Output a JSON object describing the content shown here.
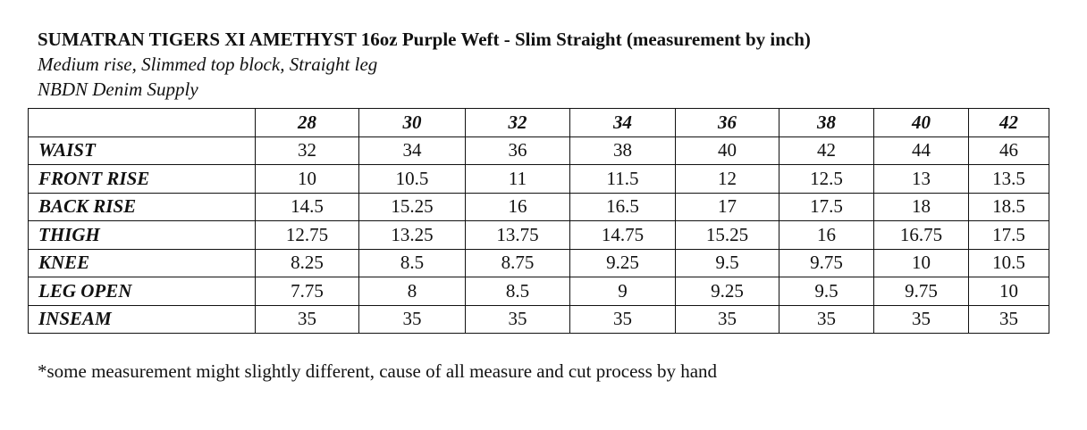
{
  "header": {
    "title": "SUMATRAN TIGERS XI AMETHYST 16oz Purple Weft -  Slim Straight (measurement by inch)",
    "subtitle": "Medium rise, Slimmed top block, Straight leg",
    "supplier": "NBDN Denim Supply"
  },
  "table": {
    "sizes": [
      "28",
      "30",
      "32",
      "34",
      "36",
      "38",
      "40",
      "42"
    ],
    "rows": [
      {
        "label": "WAIST",
        "values": [
          "32",
          "34",
          "36",
          "38",
          "40",
          "42",
          "44",
          "46"
        ]
      },
      {
        "label": "FRONT RISE",
        "values": [
          "10",
          "10.5",
          "11",
          "11.5",
          "12",
          "12.5",
          "13",
          "13.5"
        ]
      },
      {
        "label": "BACK RISE",
        "values": [
          "14.5",
          "15.25",
          "16",
          "16.5",
          "17",
          "17.5",
          "18",
          "18.5"
        ]
      },
      {
        "label": "THIGH",
        "values": [
          "12.75",
          "13.25",
          "13.75",
          "14.75",
          "15.25",
          "16",
          "16.75",
          "17.5"
        ]
      },
      {
        "label": "KNEE",
        "values": [
          "8.25",
          "8.5",
          "8.75",
          "9.25",
          "9.5",
          "9.75",
          "10",
          "10.5"
        ]
      },
      {
        "label": "LEG OPEN",
        "values": [
          "7.75",
          "8",
          "8.5",
          "9",
          "9.25",
          "9.5",
          "9.75",
          "10"
        ]
      },
      {
        "label": "INSEAM",
        "values": [
          "35",
          "35",
          "35",
          "35",
          "35",
          "35",
          "35",
          "35"
        ]
      }
    ]
  },
  "footnote": "*some measurement might slightly different, cause of all measure and cut process by hand"
}
